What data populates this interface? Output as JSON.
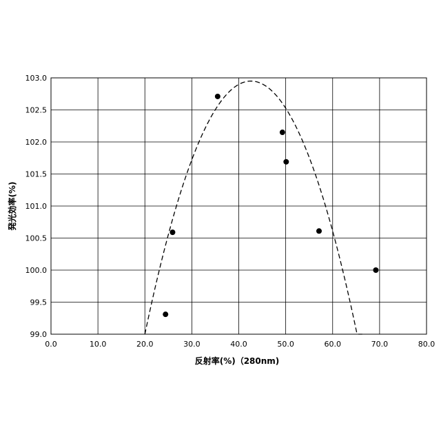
{
  "chart_data": {
    "type": "scatter",
    "title": "",
    "xlabel": "反射率(%)（280nm)",
    "ylabel": "発光効率(%)",
    "xlim": [
      0,
      80
    ],
    "ylim": [
      99.0,
      103.0
    ],
    "xticks": [
      "0.0",
      "10.0",
      "20.0",
      "30.0",
      "40.0",
      "50.0",
      "60.0",
      "70.0",
      "80.0"
    ],
    "yticks": [
      "99.0",
      "99.5",
      "100.0",
      "100.5",
      "101.0",
      "101.5",
      "102.0",
      "102.5",
      "103.0"
    ],
    "grid": true,
    "legend": "none",
    "series": [
      {
        "kind": "points",
        "marker": "filled-circle",
        "color": "#000000",
        "points": [
          {
            "x": 24.4,
            "y": 99.31
          },
          {
            "x": 25.9,
            "y": 100.59
          },
          {
            "x": 35.5,
            "y": 102.71
          },
          {
            "x": 49.3,
            "y": 102.15
          },
          {
            "x": 50.1,
            "y": 101.69
          },
          {
            "x": 57.1,
            "y": 100.61
          },
          {
            "x": 69.2,
            "y": 100.0
          }
        ]
      },
      {
        "kind": "fit-curve",
        "style": "dashed",
        "color": "#000000",
        "model": "quadratic",
        "vertex": {
          "x": 42.6,
          "y": 102.95
        },
        "x_range": [
          20.0,
          66.3
        ],
        "endpoint_y": 99.0
      }
    ]
  }
}
